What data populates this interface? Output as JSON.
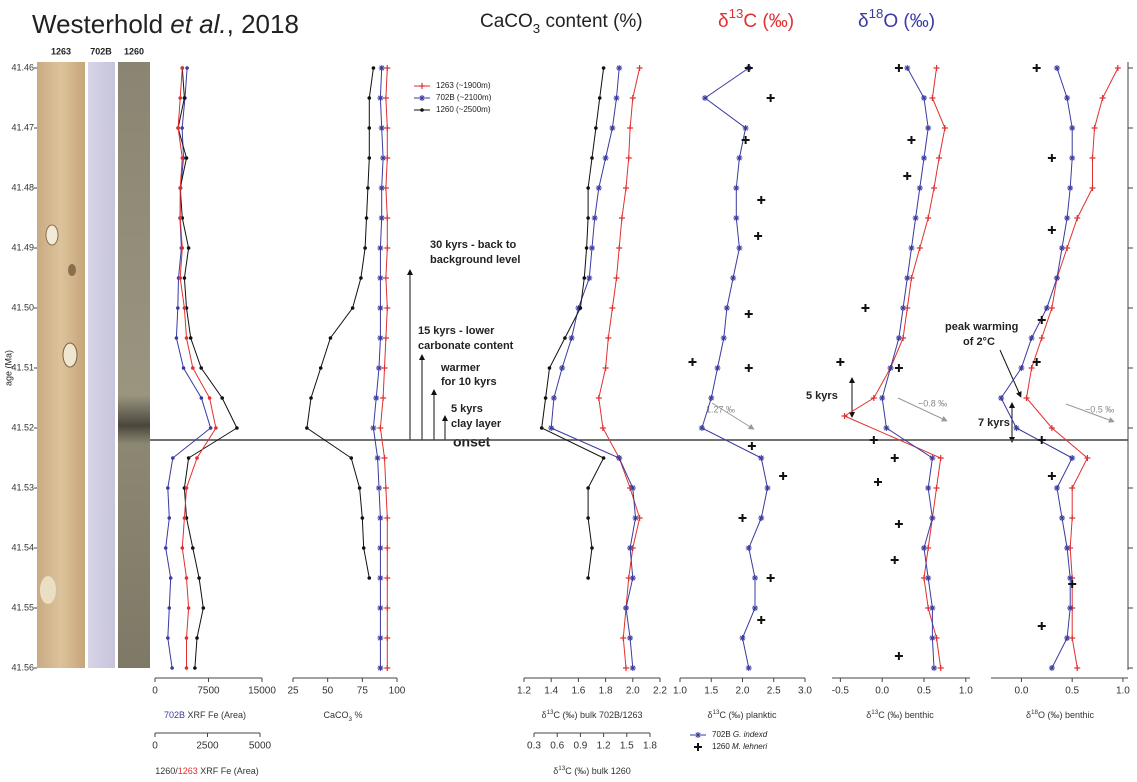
{
  "title": {
    "author": "Westerhold ",
    "etal": "et al.",
    "year": ", 2018"
  },
  "headers": {
    "caco3": [
      "CaCO",
      "3",
      " content (%)"
    ],
    "d13c": [
      "δ",
      "13",
      "C (‰)"
    ],
    "d18o": [
      "δ",
      "18",
      "O (‰)"
    ]
  },
  "cores": [
    "1263",
    "702B",
    "1260"
  ],
  "age_axis": {
    "label": "age (Ma)",
    "ylim": [
      41.46,
      41.56
    ],
    "reversed": true,
    "yticks": [
      41.46,
      41.47,
      41.48,
      41.49,
      {
        "value": 41.5,
        "label": "41.50"
      },
      41.51,
      41.52,
      41.53,
      41.54,
      41.55,
      41.56
    ]
  },
  "onset": 41.522,
  "annotations": {
    "back": [
      "30 kyrs - back to",
      "background level"
    ],
    "lower": [
      "15 kyrs - lower",
      "carbonate content"
    ],
    "warmer": [
      "warmer",
      "for 10 kyrs"
    ],
    "clay": [
      "5 kyrs",
      "clay layer"
    ],
    "onset": "onset",
    "planktic_shift": "1.27 ‰",
    "benthic_kyrs": "5 kyrs",
    "benthic_shift": "−0.8 ‰",
    "peak": [
      "peak warming",
      "of 2°C"
    ],
    "d18o_kyrs": "7 kyrs",
    "d18o_shift": "−0.5 ‰"
  },
  "chart_data": [
    {
      "type": "line",
      "xlabel": [
        "702B",
        " XRF Fe (Area)"
      ],
      "xlim": [
        0,
        15000
      ],
      "xticks": [
        0,
        7500,
        15000
      ],
      "x2label": [
        "1260/",
        "1263",
        " XRF Fe (Area)"
      ],
      "x2lim": [
        0,
        5000
      ],
      "x2ticks": [
        0,
        2500,
        5000
      ],
      "series": [
        {
          "color": "#3a3aa0",
          "marker": "dot",
          "ages": [
            41.46,
            41.465,
            41.47,
            41.475,
            41.48,
            41.485,
            41.49,
            41.495,
            41.5,
            41.505,
            41.51,
            41.515,
            41.52,
            41.525,
            41.53,
            41.535,
            41.54,
            41.545,
            41.55,
            41.555,
            41.56
          ],
          "values": [
            4500,
            4200,
            3800,
            4000,
            3600,
            3500,
            3700,
            3300,
            3200,
            3000,
            4000,
            6500,
            7800,
            2500,
            1800,
            2000,
            1500,
            2200,
            2000,
            1800,
            2400
          ]
        },
        {
          "color": "#111111",
          "marker": "dot",
          "axis": "x2",
          "ages": [
            41.46,
            41.465,
            41.47,
            41.475,
            41.48,
            41.485,
            41.49,
            41.495,
            41.5,
            41.505,
            41.51,
            41.515,
            41.52,
            41.525,
            41.53,
            41.535,
            41.54,
            41.545,
            41.55,
            41.555,
            41.56
          ],
          "values": [
            1300,
            1400,
            1100,
            1500,
            1200,
            1300,
            1600,
            1400,
            1500,
            1700,
            2200,
            3200,
            3900,
            1600,
            1400,
            1500,
            1800,
            2100,
            2300,
            2000,
            1900
          ]
        },
        {
          "color": "#e03030",
          "marker": "dot",
          "axis": "x2",
          "ages": [
            41.46,
            41.465,
            41.47,
            41.475,
            41.48,
            41.485,
            41.49,
            41.495,
            41.5,
            41.505,
            41.51,
            41.515,
            41.52,
            41.525,
            41.53,
            41.535,
            41.54,
            41.545,
            41.55,
            41.555,
            41.56
          ],
          "values": [
            1300,
            1200,
            1100,
            1300,
            1200,
            1200,
            1300,
            1200,
            1400,
            1500,
            1800,
            2600,
            2900,
            2000,
            1500,
            1400,
            1300,
            1500,
            1600,
            1500,
            1500
          ]
        }
      ]
    },
    {
      "type": "line",
      "xlabel": [
        "CaCO",
        "3",
        " %"
      ],
      "xlim": [
        25,
        100
      ],
      "xticks": [
        25,
        50,
        75,
        100
      ],
      "legend": true,
      "series": [
        {
          "name": "1263 (~1900m)",
          "color": "#e03030",
          "marker": "plus",
          "ages": [
            41.46,
            41.465,
            41.47,
            41.475,
            41.48,
            41.485,
            41.49,
            41.495,
            41.5,
            41.505,
            41.51,
            41.515,
            41.52,
            41.525,
            41.53,
            41.535,
            41.54,
            41.545,
            41.55,
            41.555,
            41.56
          ],
          "values": [
            93,
            92,
            93,
            93,
            92,
            93,
            93,
            92,
            93,
            92,
            91,
            90,
            88,
            91,
            92,
            93,
            93,
            93,
            93,
            93,
            93
          ]
        },
        {
          "name": "702B (~2100m)",
          "color": "#3a3aa0",
          "marker": "star",
          "ages": [
            41.46,
            41.465,
            41.47,
            41.475,
            41.48,
            41.485,
            41.49,
            41.495,
            41.5,
            41.505,
            41.51,
            41.515,
            41.52,
            41.525,
            41.53,
            41.535,
            41.54,
            41.545,
            41.55,
            41.555,
            41.56
          ],
          "values": [
            89,
            88,
            89,
            90,
            89,
            89,
            88,
            88,
            88,
            88,
            87,
            85,
            83,
            86,
            87,
            88,
            88,
            88,
            88,
            88,
            88
          ]
        },
        {
          "name": "1260 (~2500m)",
          "color": "#111111",
          "marker": "dot",
          "ages": [
            41.46,
            41.465,
            41.47,
            41.475,
            41.48,
            41.485,
            41.49,
            41.495,
            41.5,
            41.505,
            41.51,
            41.515,
            41.52,
            41.525,
            41.53,
            41.535,
            41.54,
            41.545
          ],
          "values": [
            83,
            80,
            80,
            80,
            79,
            78,
            77,
            74,
            68,
            52,
            45,
            38,
            35,
            67,
            73,
            75,
            76,
            80
          ]
        }
      ]
    },
    {
      "type": "line",
      "xlabel": [
        "δ",
        "13",
        "C (‰) bulk 702B/1263"
      ],
      "xlim": [
        1.2,
        2.2
      ],
      "xticks": [
        1.2,
        1.4,
        1.6,
        1.8,
        {
          "value": 2,
          "label": "2.0"
        },
        2.2
      ],
      "x2label": [
        "δ",
        "13",
        "C (‰) bulk 1260"
      ],
      "x2lim": [
        0.3,
        1.8
      ],
      "x2ticks": [
        0.3,
        0.6,
        0.9,
        1.2,
        1.5,
        1.8
      ],
      "series": [
        {
          "color": "#e03030",
          "marker": "plus",
          "ages": [
            41.46,
            41.465,
            41.47,
            41.475,
            41.48,
            41.485,
            41.49,
            41.495,
            41.5,
            41.505,
            41.51,
            41.515,
            41.52,
            41.525,
            41.53,
            41.535,
            41.54,
            41.545,
            41.55,
            41.555,
            41.56
          ],
          "values": [
            2.05,
            2.0,
            1.98,
            1.97,
            1.95,
            1.92,
            1.9,
            1.88,
            1.85,
            1.82,
            1.8,
            1.75,
            1.78,
            1.9,
            1.98,
            2.05,
            2.0,
            1.97,
            1.95,
            1.93,
            1.95
          ]
        },
        {
          "color": "#3a3aa0",
          "marker": "star",
          "ages": [
            41.46,
            41.465,
            41.47,
            41.475,
            41.48,
            41.485,
            41.49,
            41.495,
            41.5,
            41.505,
            41.51,
            41.515,
            41.52,
            41.525,
            41.53,
            41.535,
            41.54,
            41.545,
            41.55,
            41.555,
            41.56
          ],
          "values": [
            1.9,
            1.88,
            1.85,
            1.8,
            1.75,
            1.72,
            1.7,
            1.68,
            1.6,
            1.55,
            1.48,
            1.42,
            1.4,
            1.9,
            2.0,
            2.02,
            1.98,
            2.0,
            1.95,
            1.98,
            2.0
          ]
        },
        {
          "color": "#111111",
          "marker": "dot",
          "axis": "x2",
          "ages": [
            41.46,
            41.465,
            41.47,
            41.475,
            41.48,
            41.485,
            41.49,
            41.495,
            41.5,
            41.505,
            41.51,
            41.515,
            41.52,
            41.525,
            41.53,
            41.535,
            41.54,
            41.545
          ],
          "values": [
            1.2,
            1.15,
            1.1,
            1.05,
            1.0,
            1.0,
            0.98,
            0.95,
            0.9,
            0.7,
            0.5,
            0.45,
            0.4,
            1.2,
            1.0,
            1.0,
            1.05,
            1.0
          ]
        }
      ]
    },
    {
      "type": "line",
      "xlabel": [
        "δ",
        "13",
        "C (‰) planktic"
      ],
      "xlim": [
        1,
        3
      ],
      "xticks": [
        {
          "value": 1,
          "label": "1.0"
        },
        1.5,
        {
          "value": 2,
          "label": "2.0"
        },
        2.5,
        {
          "value": 3,
          "label": "3.0"
        }
      ],
      "legend": true,
      "series": [
        {
          "name": "702B",
          "species": "G. indexd",
          "color": "#3a3aa0",
          "marker": "star",
          "ages": [
            41.46,
            41.465,
            41.47,
            41.475,
            41.48,
            41.485,
            41.49,
            41.495,
            41.5,
            41.505,
            41.51,
            41.515,
            41.52,
            41.525,
            41.53,
            41.535,
            41.54,
            41.545,
            41.55,
            41.555,
            41.56
          ],
          "values": [
            2.1,
            1.4,
            2.05,
            1.95,
            1.9,
            1.9,
            1.95,
            1.85,
            1.75,
            1.7,
            1.6,
            1.5,
            1.35,
            2.3,
            2.4,
            2.3,
            2.1,
            2.2,
            2.2,
            2.0,
            2.1
          ]
        },
        {
          "name": "1260",
          "species": "M. lehneri",
          "color": "#111111",
          "marker": "cross",
          "points_only": true,
          "ages": [
            41.46,
            41.465,
            41.472,
            41.482,
            41.488,
            41.501,
            41.509,
            41.51,
            41.523,
            41.528,
            41.535,
            41.545,
            41.552
          ],
          "values": [
            2.1,
            2.45,
            2.05,
            2.3,
            2.25,
            2.1,
            1.2,
            2.1,
            2.15,
            2.65,
            2.0,
            2.45,
            2.3
          ]
        }
      ]
    },
    {
      "type": "line",
      "xlabel": [
        "δ",
        "13",
        "C (‰) benthic"
      ],
      "xlim": [
        -0.6,
        1.05
      ],
      "xticks": [
        -0.5,
        {
          "value": 0,
          "label": "0.0"
        },
        0.5,
        {
          "value": 1,
          "label": "1.0"
        }
      ],
      "series": [
        {
          "color": "#e03030",
          "marker": "plus",
          "ages": [
            41.46,
            41.465,
            41.47,
            41.475,
            41.48,
            41.485,
            41.49,
            41.495,
            41.5,
            41.505,
            41.51,
            41.515,
            41.518,
            41.525,
            41.53,
            41.535,
            41.54,
            41.545,
            41.55,
            41.555,
            41.56
          ],
          "values": [
            0.65,
            0.6,
            0.75,
            0.68,
            0.62,
            0.55,
            0.45,
            0.35,
            0.3,
            0.25,
            0.1,
            -0.1,
            -0.45,
            0.7,
            0.65,
            0.6,
            0.55,
            0.5,
            0.55,
            0.65,
            0.7
          ]
        },
        {
          "color": "#3a3aa0",
          "marker": "star",
          "ages": [
            41.46,
            41.465,
            41.47,
            41.475,
            41.48,
            41.485,
            41.49,
            41.495,
            41.5,
            41.505,
            41.51,
            41.515,
            41.52,
            41.525,
            41.53,
            41.535,
            41.54,
            41.545,
            41.55,
            41.555,
            41.56
          ],
          "values": [
            0.3,
            0.5,
            0.55,
            0.5,
            0.45,
            0.4,
            0.35,
            0.3,
            0.25,
            0.2,
            0.1,
            0.0,
            0.05,
            0.6,
            0.55,
            0.6,
            0.5,
            0.55,
            0.6,
            0.6,
            0.62
          ]
        },
        {
          "color": "#111111",
          "marker": "cross",
          "points_only": true,
          "ages": [
            41.46,
            41.472,
            41.478,
            41.5,
            41.509,
            41.51,
            41.522,
            41.525,
            41.529,
            41.536,
            41.542,
            41.558
          ],
          "values": [
            0.2,
            0.35,
            0.3,
            -0.2,
            -0.5,
            0.2,
            -0.1,
            0.15,
            -0.05,
            0.2,
            0.15,
            0.2
          ]
        }
      ]
    },
    {
      "type": "line",
      "xlabel": [
        "δ",
        "18",
        "O (‰) benthic"
      ],
      "xlim": [
        -0.3,
        1.05
      ],
      "xticks": [
        {
          "value": 0,
          "label": "0.0"
        },
        0.5,
        {
          "value": 1,
          "label": "1.0"
        }
      ],
      "series": [
        {
          "color": "#e03030",
          "marker": "plus",
          "ages": [
            41.46,
            41.465,
            41.47,
            41.475,
            41.48,
            41.485,
            41.49,
            41.495,
            41.5,
            41.505,
            41.51,
            41.515,
            41.52,
            41.525,
            41.53,
            41.535,
            41.54,
            41.545,
            41.55,
            41.555,
            41.56
          ],
          "values": [
            0.95,
            0.8,
            0.72,
            0.7,
            0.7,
            0.55,
            0.45,
            0.35,
            0.3,
            0.2,
            0.1,
            0.05,
            0.3,
            0.65,
            0.5,
            0.5,
            0.48,
            0.5,
            0.5,
            0.5,
            0.55
          ]
        },
        {
          "color": "#3a3aa0",
          "marker": "star",
          "ages": [
            41.46,
            41.465,
            41.47,
            41.475,
            41.48,
            41.485,
            41.49,
            41.495,
            41.5,
            41.505,
            41.51,
            41.515,
            41.52,
            41.525,
            41.53,
            41.535,
            41.54,
            41.545,
            41.55,
            41.555,
            41.56
          ],
          "values": [
            0.35,
            0.45,
            0.5,
            0.5,
            0.48,
            0.45,
            0.4,
            0.35,
            0.25,
            0.1,
            0.0,
            -0.2,
            -0.05,
            0.5,
            0.35,
            0.4,
            0.45,
            0.48,
            0.48,
            0.45,
            0.3
          ]
        },
        {
          "color": "#111111",
          "marker": "cross",
          "points_only": true,
          "ages": [
            41.46,
            41.475,
            41.487,
            41.502,
            41.509,
            41.522,
            41.528,
            41.546,
            41.553
          ],
          "values": [
            0.15,
            0.3,
            0.3,
            0.2,
            0.15,
            0.2,
            0.3,
            0.5,
            0.2
          ]
        }
      ]
    }
  ]
}
